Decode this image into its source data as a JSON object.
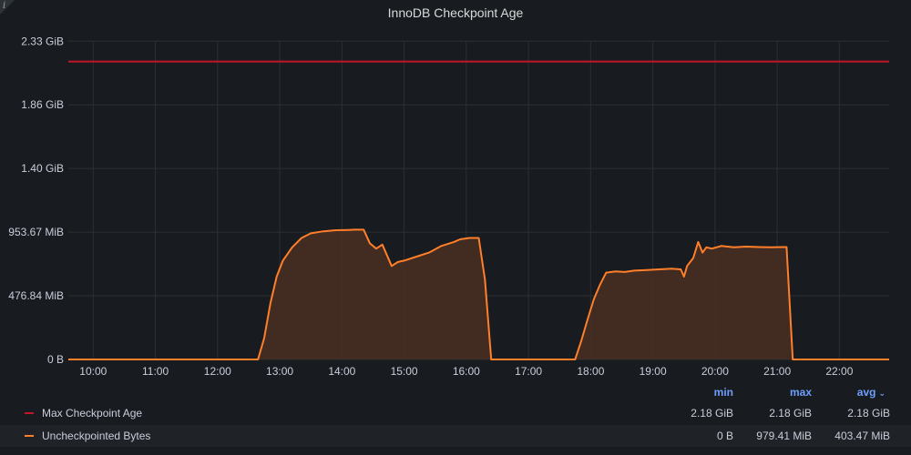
{
  "panel": {
    "title": "InnoDB Checkpoint Age",
    "info_icon": "i"
  },
  "colors": {
    "max_line": "#c4162a",
    "series_line": "#ff7f2a",
    "series_fill": "#4a2e22",
    "grid": "#2c2f35",
    "axis_text": "#ccccdc",
    "legend_header": "#6e9fff"
  },
  "chart_data": {
    "type": "area",
    "title": "InnoDB Checkpoint Age",
    "xlabel": "",
    "ylabel": "",
    "x_unit": "hour of day",
    "y_unit": "MiB",
    "xlim": [
      9.6,
      22.8
    ],
    "ylim": [
      0,
      2385.92
    ],
    "x_ticks": [
      10,
      11,
      12,
      13,
      14,
      15,
      16,
      17,
      18,
      19,
      20,
      21,
      22
    ],
    "x_tick_labels": [
      "10:00",
      "11:00",
      "12:00",
      "13:00",
      "14:00",
      "15:00",
      "16:00",
      "17:00",
      "18:00",
      "19:00",
      "20:00",
      "21:00",
      "22:00"
    ],
    "y_ticks": [
      0,
      476.84,
      953.67,
      1430.51,
      1907.35,
      2384.19
    ],
    "y_tick_labels": [
      "0 B",
      "476.84 MiB",
      "953.67 MiB",
      "1.40 GiB",
      "1.86 GiB",
      "2.33 GiB"
    ],
    "grid": true,
    "legend_position": "bottom",
    "series": [
      {
        "name": "Max Checkpoint Age",
        "style": "line",
        "x": [
          9.6,
          22.8
        ],
        "values": [
          2232,
          2232
        ]
      },
      {
        "name": "Uncheckpointed Bytes",
        "style": "area",
        "x": [
          9.6,
          12.65,
          12.75,
          12.85,
          12.95,
          13.05,
          13.2,
          13.35,
          13.5,
          13.7,
          13.9,
          14.1,
          14.2,
          14.35,
          14.45,
          14.55,
          14.65,
          14.8,
          14.9,
          15.0,
          15.2,
          15.4,
          15.6,
          15.8,
          15.9,
          16.05,
          16.2,
          16.3,
          16.4,
          17.75,
          17.85,
          17.95,
          18.05,
          18.15,
          18.25,
          18.4,
          18.55,
          18.7,
          18.9,
          19.1,
          19.3,
          19.45,
          19.5,
          19.55,
          19.65,
          19.73,
          19.8,
          19.86,
          19.95,
          20.1,
          20.3,
          20.5,
          20.7,
          20.9,
          21.1,
          21.15,
          21.25,
          22.8
        ],
        "values": [
          0,
          0,
          160,
          420,
          620,
          740,
          840,
          910,
          945,
          960,
          968,
          970,
          972,
          972,
          870,
          830,
          860,
          700,
          730,
          740,
          770,
          800,
          850,
          880,
          900,
          910,
          910,
          600,
          0,
          0,
          140,
          300,
          450,
          560,
          650,
          660,
          655,
          665,
          670,
          675,
          680,
          675,
          620,
          700,
          760,
          880,
          800,
          840,
          830,
          850,
          840,
          845,
          842,
          840,
          842,
          842,
          0,
          0
        ]
      }
    ]
  },
  "legend": {
    "headers": {
      "min": "min",
      "max": "max",
      "avg": "avg"
    },
    "sort_icon": "chevron-down",
    "rows": [
      {
        "name": "Max Checkpoint Age",
        "min": "2.18 GiB",
        "max": "2.18 GiB",
        "avg": "2.18 GiB"
      },
      {
        "name": "Uncheckpointed Bytes",
        "min": "0 B",
        "max": "979.41 MiB",
        "avg": "403.47 MiB"
      }
    ]
  }
}
